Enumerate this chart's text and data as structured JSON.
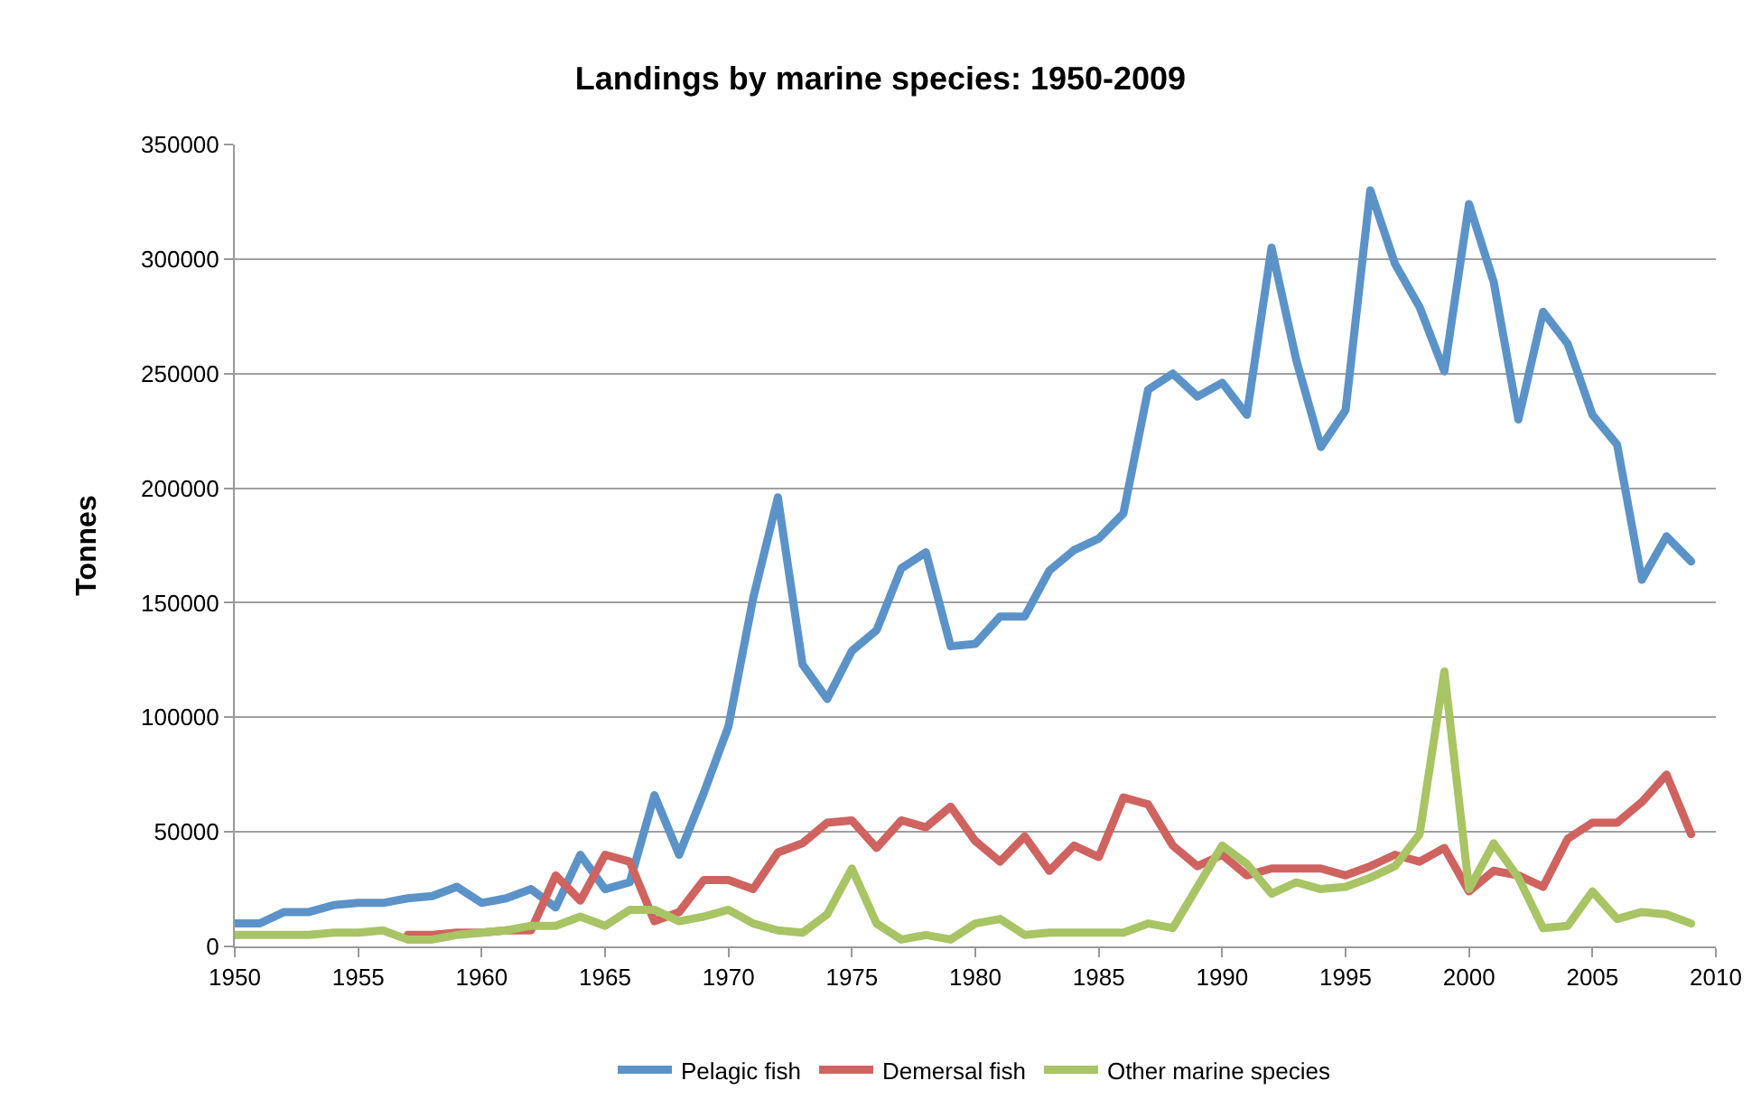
{
  "chart_data": {
    "type": "line",
    "title": "Landings by marine species: 1950-2009",
    "ylabel": "Tonnes",
    "x": [
      1950,
      1951,
      1952,
      1953,
      1954,
      1955,
      1956,
      1957,
      1958,
      1959,
      1960,
      1961,
      1962,
      1963,
      1964,
      1965,
      1966,
      1967,
      1968,
      1969,
      1970,
      1971,
      1972,
      1973,
      1974,
      1975,
      1976,
      1977,
      1978,
      1979,
      1980,
      1981,
      1982,
      1983,
      1984,
      1985,
      1986,
      1987,
      1988,
      1989,
      1990,
      1991,
      1992,
      1993,
      1994,
      1995,
      1996,
      1997,
      1998,
      1999,
      2000,
      2001,
      2002,
      2003,
      2004,
      2005,
      2006,
      2007,
      2008,
      2009
    ],
    "series": [
      {
        "name": "Pelagic fish",
        "color": "#5b93c9",
        "values": [
          10000,
          10000,
          15000,
          15000,
          18000,
          19000,
          19000,
          21000,
          22000,
          26000,
          19000,
          21000,
          25000,
          17000,
          40000,
          25000,
          28000,
          66000,
          40000,
          67000,
          96000,
          152000,
          196000,
          123000,
          108000,
          129000,
          138000,
          165000,
          172000,
          131000,
          132000,
          144000,
          144000,
          164000,
          173000,
          178000,
          189000,
          243000,
          250000,
          240000,
          246000,
          232000,
          305000,
          256000,
          218000,
          234000,
          330000,
          298000,
          279000,
          251000,
          324000,
          290000,
          230000,
          277000,
          263000,
          232000,
          219000,
          160000,
          179000,
          168000
        ]
      },
      {
        "name": "Demersal fish",
        "color": "#cf6360",
        "values": [
          null,
          null,
          null,
          null,
          null,
          null,
          null,
          5000,
          5000,
          6000,
          6000,
          7000,
          7000,
          31000,
          20000,
          40000,
          37000,
          11000,
          15000,
          29000,
          29000,
          25000,
          41000,
          45000,
          54000,
          55000,
          43000,
          55000,
          52000,
          61000,
          46000,
          37000,
          48000,
          33000,
          44000,
          39000,
          65000,
          62000,
          44000,
          35000,
          40000,
          31000,
          34000,
          34000,
          34000,
          31000,
          35000,
          40000,
          37000,
          43000,
          24000,
          33000,
          31000,
          26000,
          47000,
          54000,
          54000,
          63000,
          75000,
          49000
        ]
      },
      {
        "name": "Other marine species",
        "color": "#a8c464",
        "values": [
          5000,
          5000,
          5000,
          5000,
          6000,
          6000,
          7000,
          3000,
          3000,
          5000,
          6000,
          7000,
          9000,
          9000,
          13000,
          9000,
          16000,
          16000,
          11000,
          13000,
          16000,
          10000,
          7000,
          6000,
          14000,
          34000,
          10000,
          3000,
          5000,
          3000,
          10000,
          12000,
          5000,
          6000,
          6000,
          6000,
          6000,
          10000,
          8000,
          26000,
          44000,
          36000,
          23000,
          28000,
          25000,
          26000,
          30000,
          35000,
          49000,
          120000,
          25000,
          45000,
          30000,
          8000,
          9000,
          24000,
          12000,
          15000,
          14000,
          10000
        ]
      }
    ],
    "xlim": [
      1950,
      2010
    ],
    "xticks": [
      1950,
      1955,
      1960,
      1965,
      1970,
      1975,
      1980,
      1985,
      1990,
      1995,
      2000,
      2005,
      2010
    ],
    "ylim": [
      0,
      350000
    ],
    "yticks": [
      0,
      50000,
      100000,
      150000,
      200000,
      250000,
      300000,
      350000
    ],
    "grid": "y",
    "legend": "bottom",
    "marker": "none",
    "line_style": "solid"
  }
}
